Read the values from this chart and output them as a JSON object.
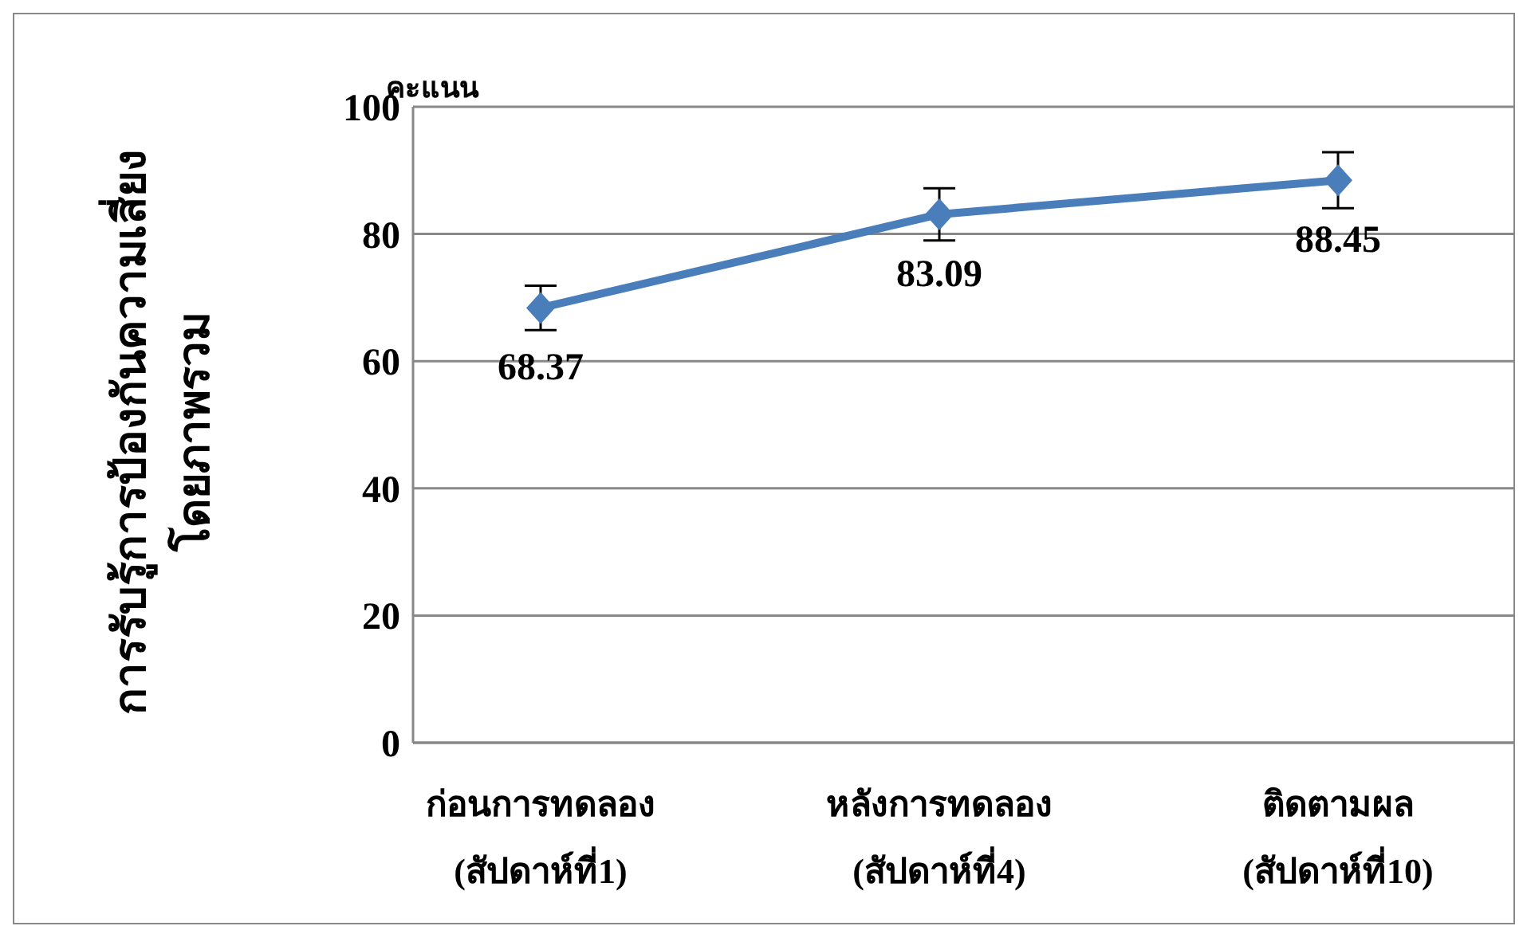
{
  "chart_data": {
    "type": "line",
    "ylabel": "การรับรู้การป้องกันความเสี่ยง\nโดยภาพรวม",
    "annotations": [
      "คะแนน"
    ],
    "categories": [
      "ก่อนการทดลอง\n(สัปดาห์ที่1)",
      "หลังการทดลอง\n(สัปดาห์ที่4)",
      "ติดตามผล\n(สัปดาห์ที่10)"
    ],
    "series": [
      {
        "color": "#4a7ebb",
        "values": [
          68.37,
          83.09,
          88.45
        ],
        "errors": [
          3.5,
          4.1,
          4.4
        ]
      }
    ],
    "ylim": [
      0,
      100
    ],
    "yticks": [
      0,
      20,
      40,
      60,
      80,
      100
    ],
    "grid": "y",
    "legend": false,
    "marker": "diamond",
    "line_style": "solid",
    "data_labels": true
  }
}
